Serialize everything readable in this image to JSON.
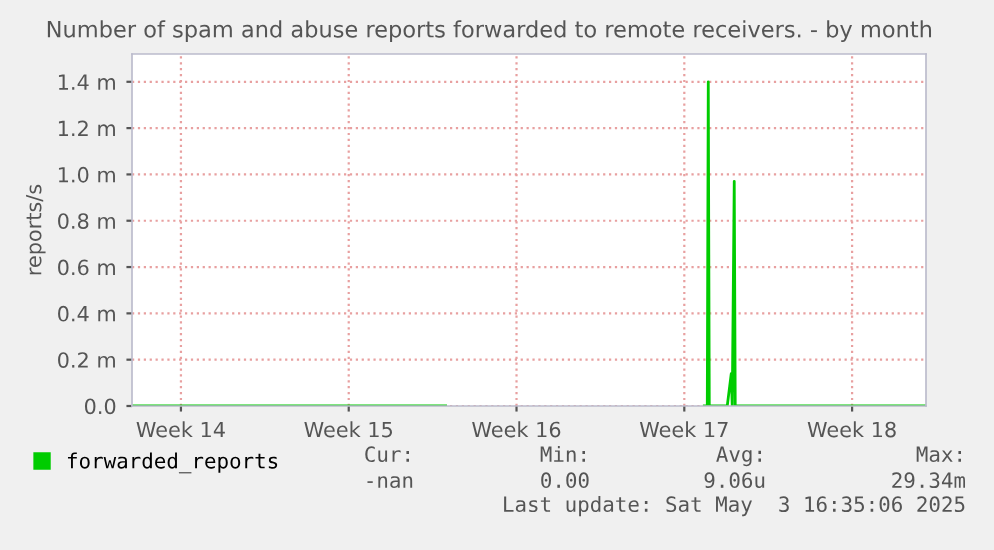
{
  "chart_data": {
    "type": "line",
    "title": "Number of spam and abuse reports forwarded to remote receivers. - by month",
    "ylabel": "reports/s",
    "series": [
      {
        "name": "forwarded_reports",
        "color": "#00cc00",
        "x": [
          "2025-04-01T11:00",
          "2025-04-07T00:00",
          "2025-04-10T12:00",
          "2025-04-14T13:00",
          "2025-04-14T14:00",
          "2025-04-25T08:00",
          "2025-04-25T11:00",
          "2025-04-25T12:00",
          "2025-04-25T13:00",
          "2025-04-26T07:00",
          "2025-04-26T11:00",
          "2025-04-26T12:00",
          "2025-04-26T14:00",
          "2025-04-26T15:00",
          "2025-04-28T17:00",
          "2025-05-01T12:00",
          "2025-05-04T14:00"
        ],
        "values": [
          0,
          0,
          0,
          0,
          null,
          0,
          0,
          1.4,
          0,
          0,
          0.14,
          0,
          0.97,
          0,
          0,
          0,
          0
        ]
      }
    ],
    "xlim": [
      "2025-04-01T11:00",
      "2025-05-04T14:00"
    ],
    "xticks": [
      {
        "value": "2025-04-03T12:00",
        "label": "Week 14"
      },
      {
        "value": "2025-04-10T12:00",
        "label": "Week 15"
      },
      {
        "value": "2025-04-17T12:00",
        "label": "Week 16"
      },
      {
        "value": "2025-04-24T12:00",
        "label": "Week 17"
      },
      {
        "value": "2025-05-01T12:00",
        "label": "Week 18"
      }
    ],
    "ylim": [
      0,
      1.52
    ],
    "yticks": [
      {
        "value": 0,
        "label": "0.0"
      },
      {
        "value": 0.2,
        "label": "0.2 m"
      },
      {
        "value": 0.4,
        "label": "0.4 m"
      },
      {
        "value": 0.6,
        "label": "0.6 m"
      },
      {
        "value": 0.8,
        "label": "0.8 m"
      },
      {
        "value": 1.0,
        "label": "1.0 m"
      },
      {
        "value": 1.2,
        "label": "1.2 m"
      },
      {
        "value": 1.4,
        "label": "1.4 m"
      }
    ],
    "grid": true,
    "legend": "bottom left",
    "marker": "none",
    "line_style": "solid",
    "annotations": [
      "Cur:",
      "Min:",
      "Avg:",
      "Max:",
      "-nan",
      "0.00",
      "9.06u",
      "29.34m",
      "Last update: Sat May  3 16:35:06 2025"
    ]
  }
}
